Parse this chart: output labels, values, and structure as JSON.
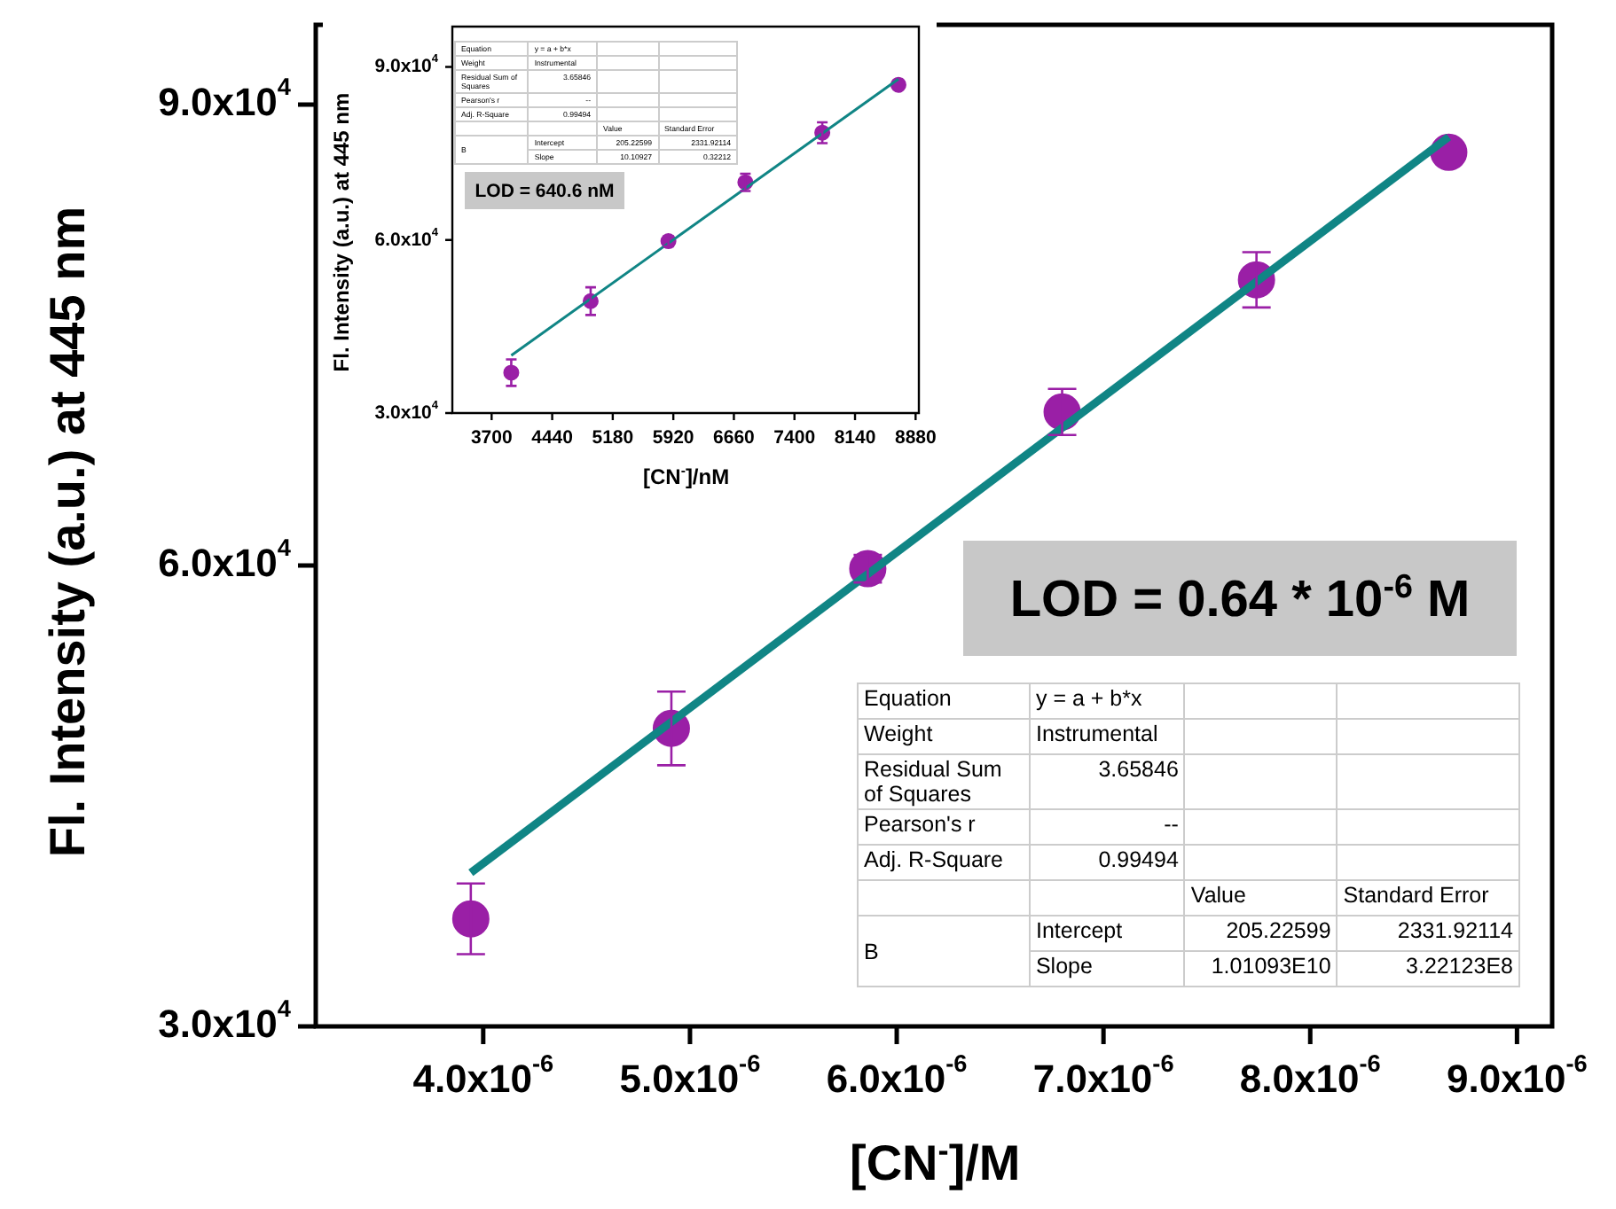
{
  "chart_data": [
    {
      "type": "scatter",
      "xlabel": "[CN$^{-}$]/M",
      "ylabel": "Fl. Intensity (a.u.) at 445 nm",
      "x": [
        3.94e-06,
        4.91e-06,
        5.86e-06,
        6.8e-06,
        7.74e-06,
        8.67e-06
      ],
      "series": [
        {
          "type": "scatter",
          "color": "#9a1fa6",
          "values": [
            37000,
            49400,
            59800,
            70000,
            78600,
            86900
          ],
          "errors": [
            2300,
            2400,
            900,
            1500,
            1800,
            null
          ]
        },
        {
          "type": "line",
          "color": "#108585",
          "marker": "none",
          "x": [
            3.94e-06,
            8.67e-06
          ],
          "values": [
            40000,
            87900
          ]
        }
      ],
      "xlim": [
        3.19e-06,
        9.17e-06
      ],
      "ylim": [
        30000,
        95200
      ],
      "xticks": [
        {
          "value": 4e-06,
          "label": "4.0x10$^{-6}$"
        },
        {
          "value": 5e-06,
          "label": "5.0x10$^{-6}$"
        },
        {
          "value": 6e-06,
          "label": "6.0x10$^{-6}$"
        },
        {
          "value": 7e-06,
          "label": "7.0x10$^{-6}$"
        },
        {
          "value": 8e-06,
          "label": "8.0x10$^{-6}$"
        },
        {
          "value": 9e-06,
          "label": "9.0x10$^{-6}$"
        }
      ],
      "yticks": [
        {
          "value": 30000,
          "label": "3.0x10$^{4}$"
        },
        {
          "value": 60000,
          "label": "6.0x10$^{4}$"
        },
        {
          "value": 90000,
          "label": "9.0x10$^{4}$"
        }
      ],
      "marker": "circle",
      "grid": false,
      "legend": false,
      "annotations": [
        "LOD = 0.64 * 10$^{-6}$ M",
        "Equation",
        "y = a + b*x",
        "Weight",
        "Instrumental",
        "Residual Sum of Squares",
        "3.65846",
        "Pearson's r",
        "--",
        "Adj. R-Square",
        "0.99494",
        "Value",
        "Standard Error",
        "B",
        "Intercept",
        "205.22599",
        "2331.92114",
        "Slope",
        "1.01093E10",
        "3.22123E8"
      ]
    },
    {
      "type": "scatter",
      "xlabel": "[CN$^{-}$]/nM",
      "ylabel": "Fl. Intensity (a.u.) at 445 nm",
      "x": [
        3940,
        4910,
        5860,
        6800,
        7740,
        8670
      ],
      "series": [
        {
          "type": "scatter",
          "color": "#9a1fa6",
          "values": [
            37000,
            49400,
            59800,
            70000,
            78600,
            86900
          ],
          "errors": [
            2300,
            2400,
            900,
            1500,
            1800,
            null
          ]
        },
        {
          "type": "line",
          "color": "#108585",
          "marker": "none",
          "x": [
            3940,
            8670
          ],
          "values": [
            40000,
            87900
          ]
        }
      ],
      "xlim": [
        3220,
        8920
      ],
      "ylim": [
        30000,
        97000
      ],
      "xticks": [
        3700,
        4440,
        5180,
        5920,
        6660,
        7400,
        8140,
        8880
      ],
      "yticks": [
        {
          "value": 30000,
          "label": "3.0x10$^{4}$"
        },
        {
          "value": 60000,
          "label": "6.0x10$^{4}$"
        },
        {
          "value": 90000,
          "label": "9.0x10$^{4}$"
        }
      ],
      "marker": "circle",
      "grid": false,
      "legend": false,
      "annotations": [
        "LOD = 640.6 nM",
        "Equation",
        "y = a + b*x",
        "Weight",
        "Instrumental",
        "Residual Sum of Squares",
        "3.65846",
        "Pearson's r",
        "--",
        "Adj. R-Square",
        "0.99494",
        "Value",
        "Standard Error",
        "B",
        "Intercept",
        "205.22599",
        "2331.92114",
        "Slope",
        "10.10927",
        "0.32212"
      ]
    }
  ]
}
